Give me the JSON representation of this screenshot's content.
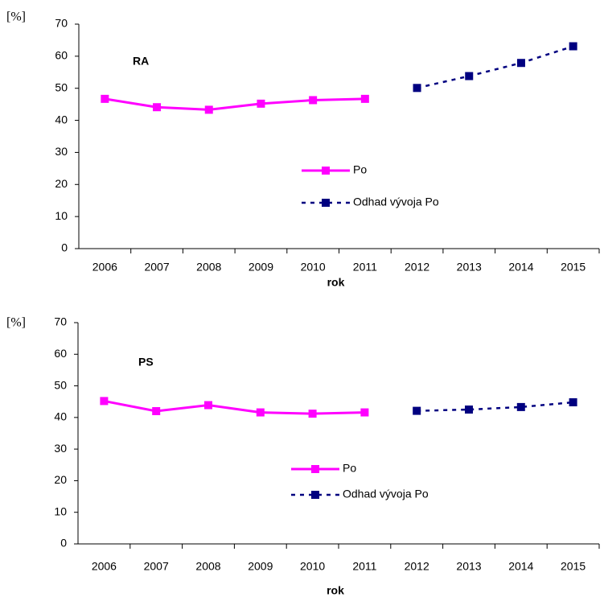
{
  "chart_data": [
    {
      "type": "line",
      "annotation": "RA",
      "y_label": "[%]",
      "x_label": "rok",
      "categories": [
        "2006",
        "2007",
        "2008",
        "2009",
        "2010",
        "2011",
        "2012",
        "2013",
        "2014",
        "2015"
      ],
      "series": [
        {
          "name": "Po",
          "color": "#ff00ff",
          "dashed": false,
          "values": [
            46.7,
            44.1,
            43.3,
            45.2,
            46.3,
            46.7,
            null,
            null,
            null,
            null
          ]
        },
        {
          "name": "Odhad vývoja Po",
          "color": "#000080",
          "dashed": true,
          "values": [
            null,
            null,
            null,
            null,
            null,
            null,
            50.1,
            53.8,
            57.9,
            63.1
          ]
        }
      ],
      "ylim": [
        0,
        70
      ],
      "yticks": [
        0,
        10,
        20,
        30,
        40,
        50,
        60,
        70
      ],
      "grid": false
    },
    {
      "type": "line",
      "annotation": "PS",
      "y_label": "[%]",
      "x_label": "rok",
      "categories": [
        "2006",
        "2007",
        "2008",
        "2009",
        "2010",
        "2011",
        "2012",
        "2013",
        "2014",
        "2015"
      ],
      "series": [
        {
          "name": "Po",
          "color": "#ff00ff",
          "dashed": false,
          "values": [
            45.2,
            42.0,
            43.9,
            41.6,
            41.2,
            41.6,
            null,
            null,
            null,
            null
          ]
        },
        {
          "name": "Odhad vývoja Po",
          "color": "#000080",
          "dashed": true,
          "values": [
            null,
            null,
            null,
            null,
            null,
            null,
            42.1,
            42.5,
            43.3,
            44.8
          ]
        }
      ],
      "ylim": [
        0,
        70
      ],
      "yticks": [
        0,
        10,
        20,
        30,
        40,
        50,
        60,
        70
      ],
      "grid": false
    }
  ]
}
